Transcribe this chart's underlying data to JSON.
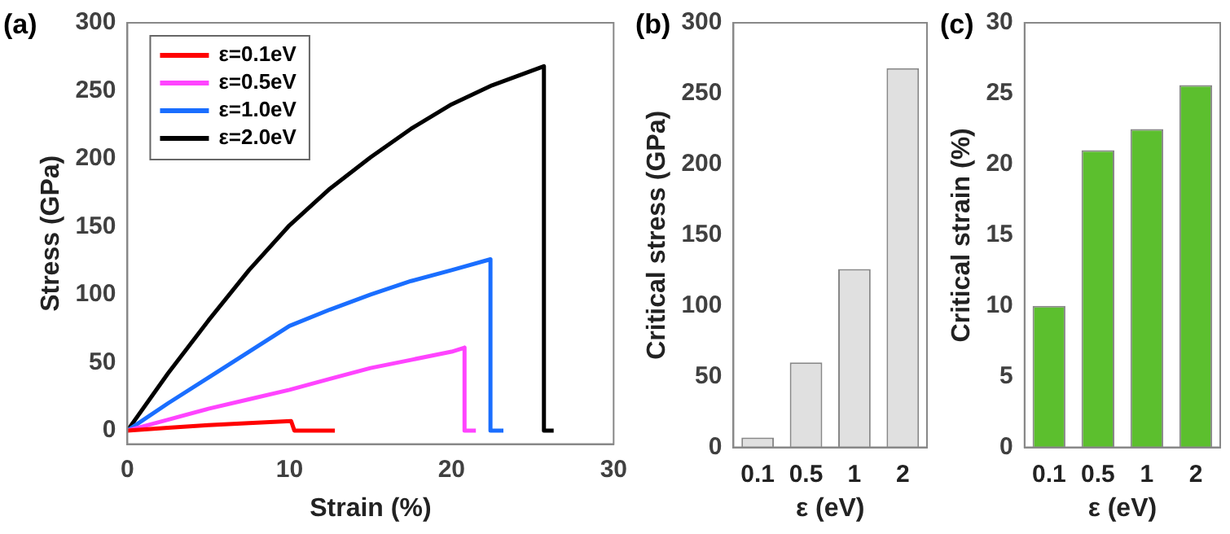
{
  "chart_data": [
    {
      "type": "line",
      "title": "(a)",
      "xlabel": "Strain (%)",
      "ylabel": "Stress (GPa)",
      "xlim": [
        0,
        30
      ],
      "xticks": [
        0,
        10,
        20,
        30
      ],
      "ylim": [
        -10,
        300
      ],
      "yticks": [
        0,
        50,
        100,
        150,
        200,
        250,
        300
      ],
      "grid": false,
      "legend": "top left",
      "marker": "none",
      "line_style": "solid",
      "series": [
        {
          "name": "ε=0.1eV",
          "color": "#ff0000",
          "x": [
            0,
            2.5,
            5,
            7.5,
            10.1,
            10.3,
            12.8
          ],
          "values": [
            0,
            2,
            4,
            5.5,
            7,
            0,
            0
          ]
        },
        {
          "name": "ε=0.5eV",
          "color": "#ff44ff",
          "x": [
            0,
            2.5,
            5,
            7.5,
            10,
            12.5,
            15,
            17.5,
            20,
            20.8,
            20.8,
            21.5
          ],
          "values": [
            0,
            8,
            16,
            23,
            30,
            38,
            46,
            52,
            58,
            61,
            0,
            0
          ]
        },
        {
          "name": "ε=1.0eV",
          "color": "#1a6eff",
          "x": [
            0,
            2.5,
            5,
            7.5,
            10,
            12.5,
            15,
            17.5,
            20,
            22.4,
            22.4,
            23.2
          ],
          "values": [
            0,
            20,
            39,
            58,
            77,
            89,
            100,
            110,
            118,
            126,
            0,
            0
          ]
        },
        {
          "name": "ε=2.0eV",
          "color": "#000000",
          "x": [
            0,
            2.5,
            5,
            7.5,
            10,
            12.5,
            15,
            17.5,
            20,
            22.5,
            25.7,
            25.7,
            26.3
          ],
          "values": [
            0,
            42,
            81,
            118,
            151,
            178,
            201,
            222,
            240,
            254,
            268,
            0,
            0
          ]
        }
      ]
    },
    {
      "type": "bar",
      "title": "(b)",
      "xlabel": "ε (eV)",
      "ylabel": "Critical stress (GPa)",
      "categories": [
        "0.1",
        "0.5",
        "1",
        "2"
      ],
      "values": [
        7,
        60,
        126,
        268
      ],
      "color": "#e0e0e0",
      "ylim": [
        0,
        300
      ],
      "yticks": [
        0,
        50,
        100,
        150,
        200,
        250,
        300
      ],
      "grid": false,
      "legend": false
    },
    {
      "type": "bar",
      "title": "(c)",
      "xlabel": "ε (eV)",
      "ylabel": "Critical strain (%)",
      "categories": [
        "0.1",
        "0.5",
        "1",
        "2"
      ],
      "values": [
        10,
        21,
        22.5,
        25.6
      ],
      "color": "#5cbf2e",
      "ylim": [
        0,
        30
      ],
      "yticks": [
        0,
        5,
        10,
        15,
        20,
        25,
        30
      ],
      "grid": false,
      "legend": false
    }
  ]
}
